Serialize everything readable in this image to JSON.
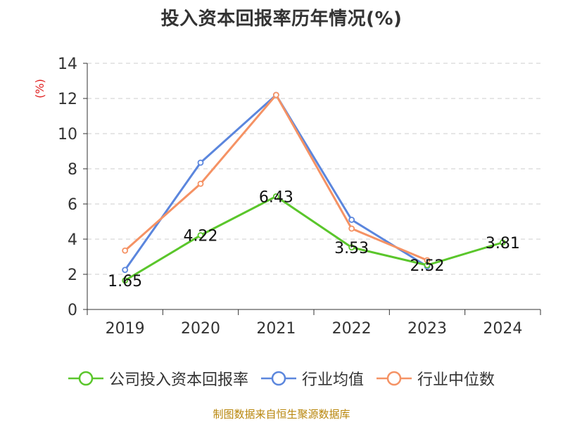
{
  "chart_data": {
    "type": "line",
    "title": "投入资本回报率历年情况(%)",
    "ylabel": "(%)",
    "xlabel": "",
    "categories": [
      "2019",
      "2020",
      "2021",
      "2022",
      "2023",
      "2024"
    ],
    "ylim": [
      0,
      14
    ],
    "yticks": [
      0,
      2,
      4,
      6,
      8,
      10,
      12,
      14
    ],
    "grid": true,
    "legend_position": "bottom",
    "series": [
      {
        "name": "公司投入资本回报率",
        "color": "#5ac62b",
        "values": [
          1.65,
          4.22,
          6.43,
          3.53,
          2.52,
          3.81
        ],
        "labels": [
          "1.65",
          "4.22",
          "6.43",
          "3.53",
          "2.52",
          "3.81"
        ]
      },
      {
        "name": "行业均值",
        "color": "#5b86dd",
        "values": [
          2.25,
          8.35,
          12.2,
          5.1,
          2.45,
          null
        ]
      },
      {
        "name": "行业中位数",
        "color": "#f59264",
        "values": [
          3.35,
          7.15,
          12.2,
          4.6,
          2.8,
          null
        ]
      }
    ]
  },
  "source": "制图数据来自恒生聚源数据库"
}
